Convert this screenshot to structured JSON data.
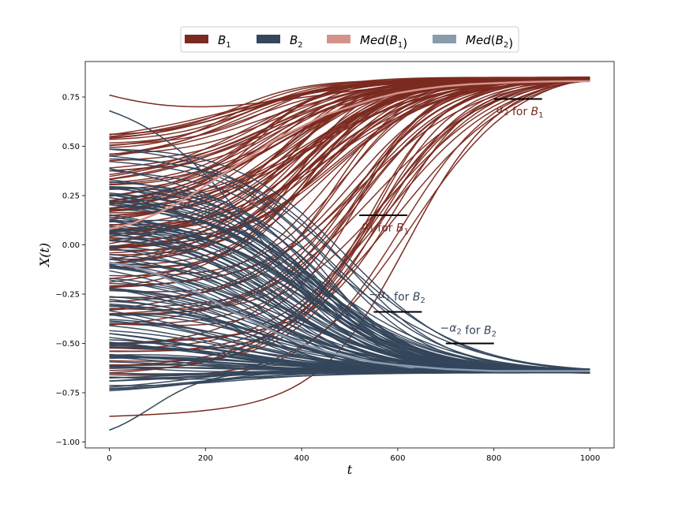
{
  "chart_data": {
    "type": "line",
    "xlabel": "t",
    "ylabel": "X(t)",
    "xlim": [
      -50,
      1050
    ],
    "ylim": [
      -1.03,
      0.93
    ],
    "x_ticks": [
      0,
      200,
      400,
      600,
      800,
      1000
    ],
    "y_ticks": [
      -1.0,
      -0.75,
      -0.5,
      -0.25,
      0.0,
      0.25,
      0.5,
      0.75
    ],
    "x_tick_labels": [
      "0",
      "200",
      "400",
      "600",
      "800",
      "1000"
    ],
    "y_tick_labels": [
      "−1.00",
      "−0.75",
      "−0.50",
      "−0.25",
      "0.00",
      "0.25",
      "0.50",
      "0.75"
    ],
    "grid": false,
    "legend_position": "top-center",
    "colors": {
      "B1": "#7b2a20",
      "B2": "#34465b",
      "Med_B1": "#d4938a",
      "Med_B2": "#8b9bae"
    },
    "legend": [
      {
        "key": "B1",
        "base": "B",
        "sub": "1",
        "prefix": "",
        "suffix": ""
      },
      {
        "key": "B2",
        "base": "B",
        "sub": "2",
        "prefix": "",
        "suffix": ""
      },
      {
        "key": "Med_B1",
        "base": "B",
        "sub": "1",
        "prefix": "Med(",
        "suffix": ")"
      },
      {
        "key": "Med_B2",
        "base": "B",
        "sub": "2",
        "prefix": "Med(",
        "suffix": ")"
      }
    ],
    "series": [
      {
        "key": "B1",
        "kind": "ensemble",
        "endpoint": 0.84,
        "start_range": [
          -0.87,
          0.76
        ]
      },
      {
        "key": "B2",
        "kind": "ensemble",
        "endpoint": -0.64,
        "start_range": [
          -0.94,
          0.68
        ]
      },
      {
        "key": "Med_B1",
        "kind": "median",
        "x": [
          0,
          50,
          100,
          150,
          200,
          250,
          300,
          350,
          400,
          450,
          500,
          550,
          600,
          650,
          700,
          750,
          800,
          850,
          900,
          950,
          1000
        ],
        "y": [
          0.08,
          0.11,
          0.16,
          0.22,
          0.3,
          0.38,
          0.46,
          0.54,
          0.6,
          0.66,
          0.7,
          0.74,
          0.77,
          0.79,
          0.805,
          0.815,
          0.82,
          0.825,
          0.828,
          0.83,
          0.83
        ]
      },
      {
        "key": "Med_B2",
        "kind": "median",
        "x": [
          0,
          50,
          100,
          150,
          200,
          250,
          300,
          350,
          400,
          450,
          500,
          550,
          600,
          650,
          700,
          750,
          800,
          850,
          900,
          950,
          1000
        ],
        "y": [
          -0.09,
          -0.11,
          -0.15,
          -0.2,
          -0.26,
          -0.33,
          -0.39,
          -0.45,
          -0.5,
          -0.54,
          -0.57,
          -0.595,
          -0.61,
          -0.62,
          -0.63,
          -0.635,
          -0.64,
          -0.64,
          -0.64,
          -0.64,
          -0.64
        ]
      }
    ],
    "annotations": [
      {
        "id": "alpha2-B1",
        "key": "B1",
        "prefix": "",
        "greek": "α",
        "sub": "2",
        "mid": " for ",
        "base": "B",
        "bsub": "1",
        "line": {
          "x": [
            800,
            900
          ],
          "y": 0.74
        },
        "text_at": [
          805,
          0.67
        ]
      },
      {
        "id": "alpha1-B1",
        "key": "B1",
        "prefix": "",
        "greek": "α",
        "sub": "1",
        "mid": " for ",
        "base": "B",
        "bsub": "1",
        "line": {
          "x": [
            520,
            620
          ],
          "y": 0.15
        },
        "text_at": [
          525,
          0.08
        ]
      },
      {
        "id": "neg-alpha1-B2",
        "key": "B2",
        "prefix": "−",
        "greek": "α",
        "sub": "1",
        "mid": " for ",
        "base": "B",
        "bsub": "2",
        "line": {
          "x": [
            550,
            650
          ],
          "y": -0.34
        },
        "text_at": [
          540,
          -0.27
        ]
      },
      {
        "id": "neg-alpha2-B2",
        "key": "B2",
        "prefix": "−",
        "greek": "α",
        "sub": "2",
        "mid": " for ",
        "base": "B",
        "bsub": "2",
        "line": {
          "x": [
            700,
            800
          ],
          "y": -0.5
        },
        "text_at": [
          688,
          -0.44
        ]
      }
    ]
  }
}
